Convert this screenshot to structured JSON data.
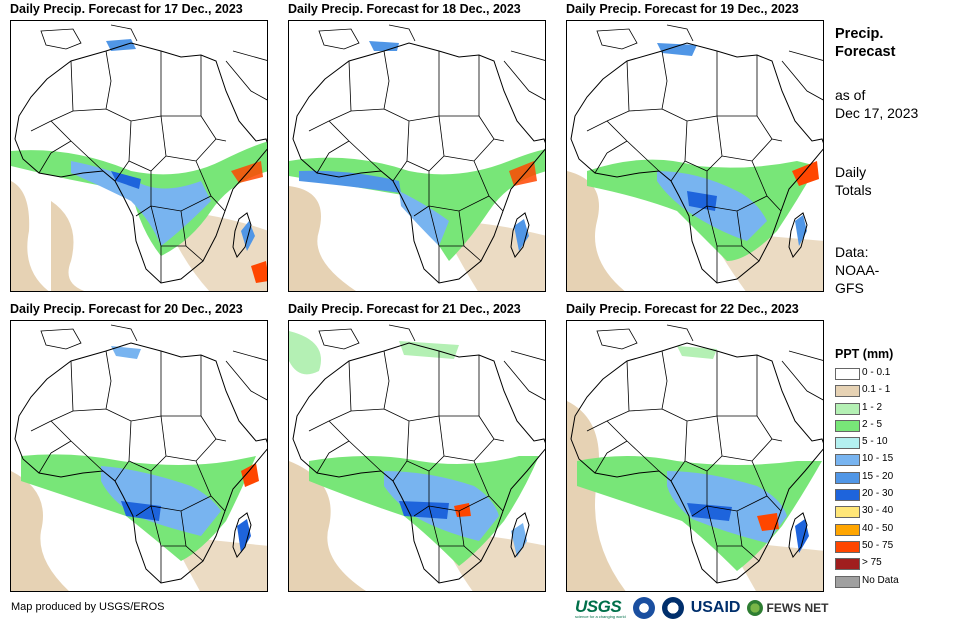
{
  "panels": [
    {
      "title": "Daily Precip. Forecast for 17 Dec., 2023"
    },
    {
      "title": "Daily Precip. Forecast for 18 Dec., 2023"
    },
    {
      "title": "Daily Precip. Forecast for 19 Dec., 2023"
    },
    {
      "title": "Daily Precip. Forecast for 20 Dec., 2023"
    },
    {
      "title": "Daily Precip. Forecast for 21 Dec., 2023"
    },
    {
      "title": "Daily Precip. Forecast for 22 Dec., 2023"
    }
  ],
  "sidebar": {
    "heading_line1": "Precip.",
    "heading_line2": "Forecast",
    "asof_line1": "as of",
    "asof_line2": "Dec 17, 2023",
    "daily_line1": "Daily",
    "daily_line2": "Totals",
    "data_line1": "Data:",
    "data_line2": "NOAA-",
    "data_line3": "GFS"
  },
  "legend": {
    "title": "PPT (mm)",
    "items": [
      {
        "label": "0 - 0.1",
        "color": "#ffffff"
      },
      {
        "label": "0.1 - 1",
        "color": "#e6d2b4"
      },
      {
        "label": "1 - 2",
        "color": "#b4f0b4"
      },
      {
        "label": "2 - 5",
        "color": "#78e678"
      },
      {
        "label": "5 - 10",
        "color": "#b4f0f0"
      },
      {
        "label": "10 - 15",
        "color": "#78b4f0"
      },
      {
        "label": "15 - 20",
        "color": "#5096e6"
      },
      {
        "label": "20 - 30",
        "color": "#1e64dc"
      },
      {
        "label": "30 - 40",
        "color": "#ffe678"
      },
      {
        "label": "40 - 50",
        "color": "#ffa500"
      },
      {
        "label": "50 - 75",
        "color": "#ff4600"
      },
      {
        "label": "> 75",
        "color": "#a01e1e"
      },
      {
        "label": "No Data",
        "color": "#a0a0a0"
      }
    ]
  },
  "footer": {
    "credit": "Map produced by USGS/EROS",
    "logo_usgs": "USGS",
    "logo_usgs_tagline": "science for a changing world",
    "logo_usaid": "USAID",
    "logo_fews": "FEWS NET"
  },
  "colors": {
    "tan": "#e6d2b4",
    "light_green": "#b4f0b4",
    "green": "#78e678",
    "cyan": "#b4f0f0",
    "blue1": "#78b4f0",
    "blue2": "#5096e6",
    "blue3": "#1e64dc",
    "orange": "#ffa500",
    "red": "#ff4600"
  }
}
